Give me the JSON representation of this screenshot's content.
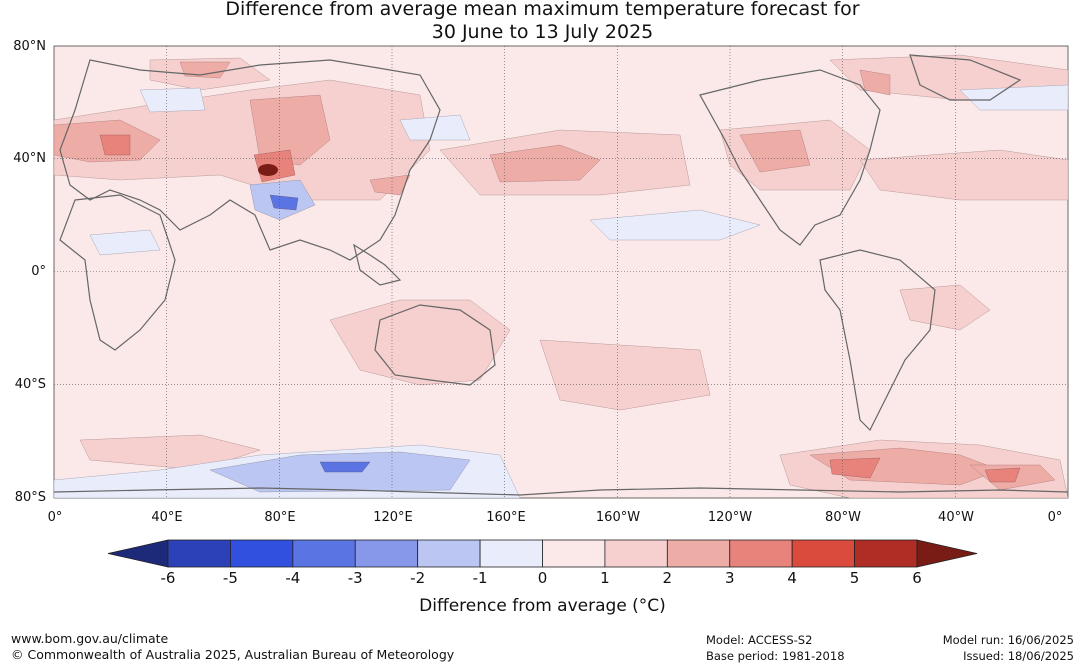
{
  "title_line1": "Difference from average mean maximum temperature forecast for",
  "title_line2": "30 June to 13 July 2025",
  "lat_labels": [
    "80°N",
    "40°N",
    "0°",
    "40°S",
    "80°S"
  ],
  "lon_labels": [
    "0°",
    "40°E",
    "80°E",
    "120°E",
    "160°E",
    "160°W",
    "120°W",
    "80°W",
    "40°W",
    "0°"
  ],
  "colorbar": {
    "label": "Difference from average (°C)",
    "ticks": [
      "-6",
      "-5",
      "-4",
      "-3",
      "-2",
      "-1",
      "0",
      "1",
      "2",
      "3",
      "4",
      "5",
      "6"
    ],
    "colors": [
      "#1d2a7a",
      "#2c41b8",
      "#3150e0",
      "#5a74e4",
      "#8797ea",
      "#bcc6f3",
      "#e8ecfb",
      "#fbe9e9",
      "#f5d0cf",
      "#eeaca7",
      "#e8837b",
      "#da4a3d",
      "#b02d25",
      "#7a1c16"
    ]
  },
  "footer": {
    "website": "www.bom.gov.au/climate",
    "copyright": "© Commonwealth of Australia 2025, Australian Bureau of Meteorology",
    "model": "Model: ACCESS-S2",
    "base_period": "Base period: 1981-2018",
    "model_run": "Model run: 16/06/2025",
    "issued": "Issued: 18/06/2025"
  }
}
